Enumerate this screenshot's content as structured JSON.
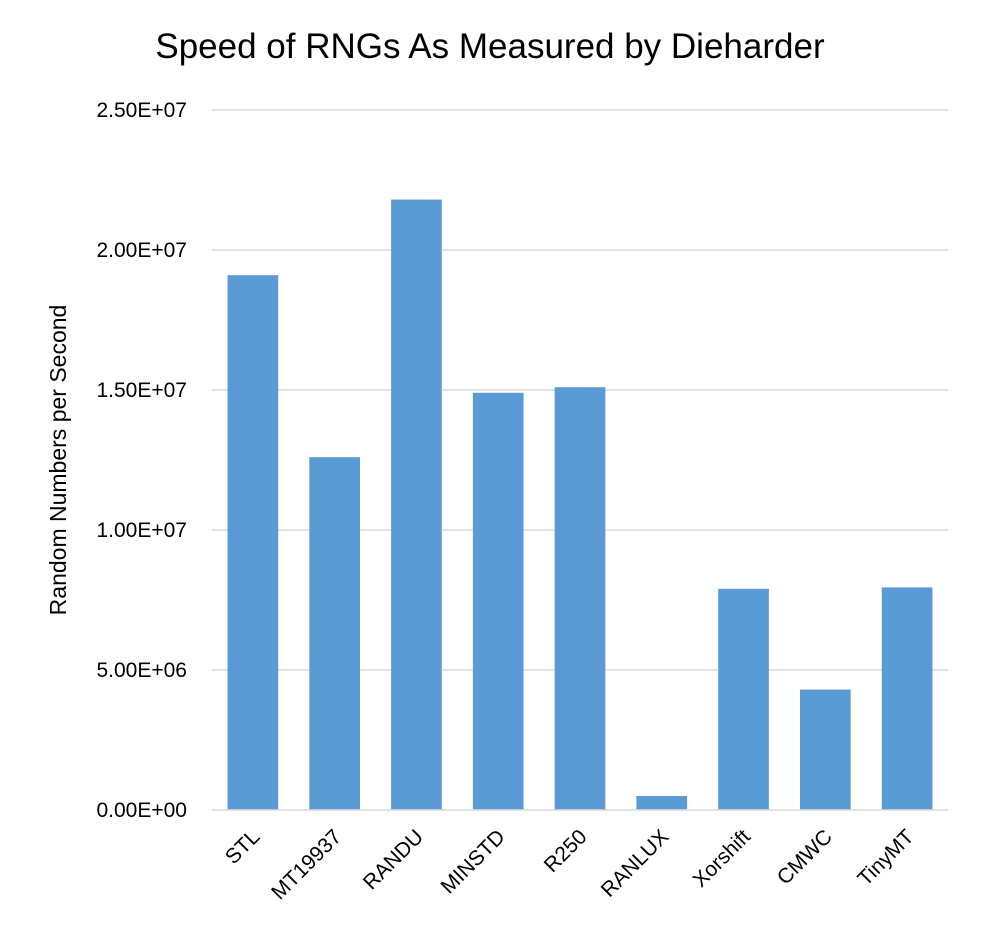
{
  "chart_data": {
    "type": "bar",
    "title": "Speed of RNGs As Measured by Dieharder",
    "xlabel": "",
    "ylabel": "Random Numbers per Second",
    "categories": [
      "STL",
      "MT19937",
      "RANDU",
      "MINSTD",
      "R250",
      "RANLUX",
      "Xorshift",
      "CMWC",
      "TinyMT"
    ],
    "values": [
      19100000,
      12600000,
      21800000,
      14900000,
      15100000,
      500000,
      7900000,
      4300000,
      7950000
    ],
    "ylim": [
      0,
      25000000
    ],
    "yticks": [
      0,
      5000000,
      10000000,
      15000000,
      20000000,
      25000000
    ],
    "ytick_labels": [
      "0.00E+00",
      "5.00E+06",
      "1.00E+07",
      "1.50E+07",
      "2.00E+07",
      "2.50E+07"
    ],
    "grid": true,
    "legend": "none",
    "bar_color": "#5b9bd5"
  }
}
